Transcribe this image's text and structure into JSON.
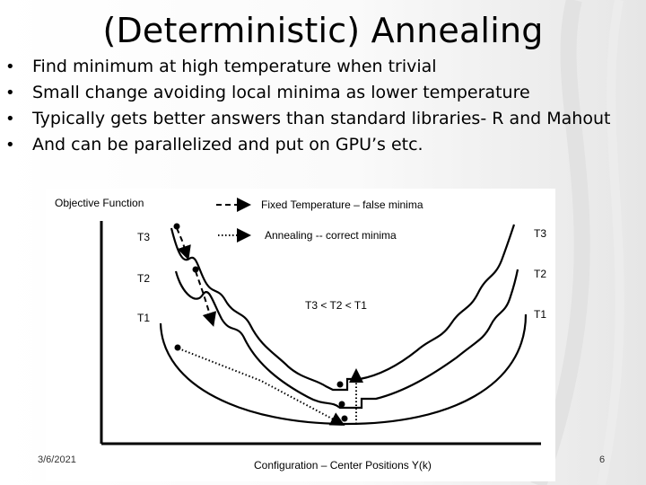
{
  "slide": {
    "title": "(Deterministic) Annealing",
    "bullets": [
      "Find minimum at high temperature when trivial",
      "Small change avoiding local minima as lower temperature",
      "Typically gets better answers than standard libraries- R and Mahout",
      "And can be parallelized and put on GPU’s etc."
    ],
    "bullet_marker": "•",
    "date": "3/6/2021",
    "page_number": "6"
  },
  "figure": {
    "y_axis_label": "Objective Function",
    "x_axis_label": "Configuration – Center Positions Y(k)",
    "legend": {
      "dashed_label": "Fixed Temperature – false minima",
      "dotted_label": "Annealing -- correct minima"
    },
    "relation_label": "T3 < T2 < T1",
    "curve_labels_left": [
      "T3",
      "T2",
      "T1"
    ],
    "curve_labels_right": [
      "T3",
      "T2",
      "T1"
    ]
  }
}
